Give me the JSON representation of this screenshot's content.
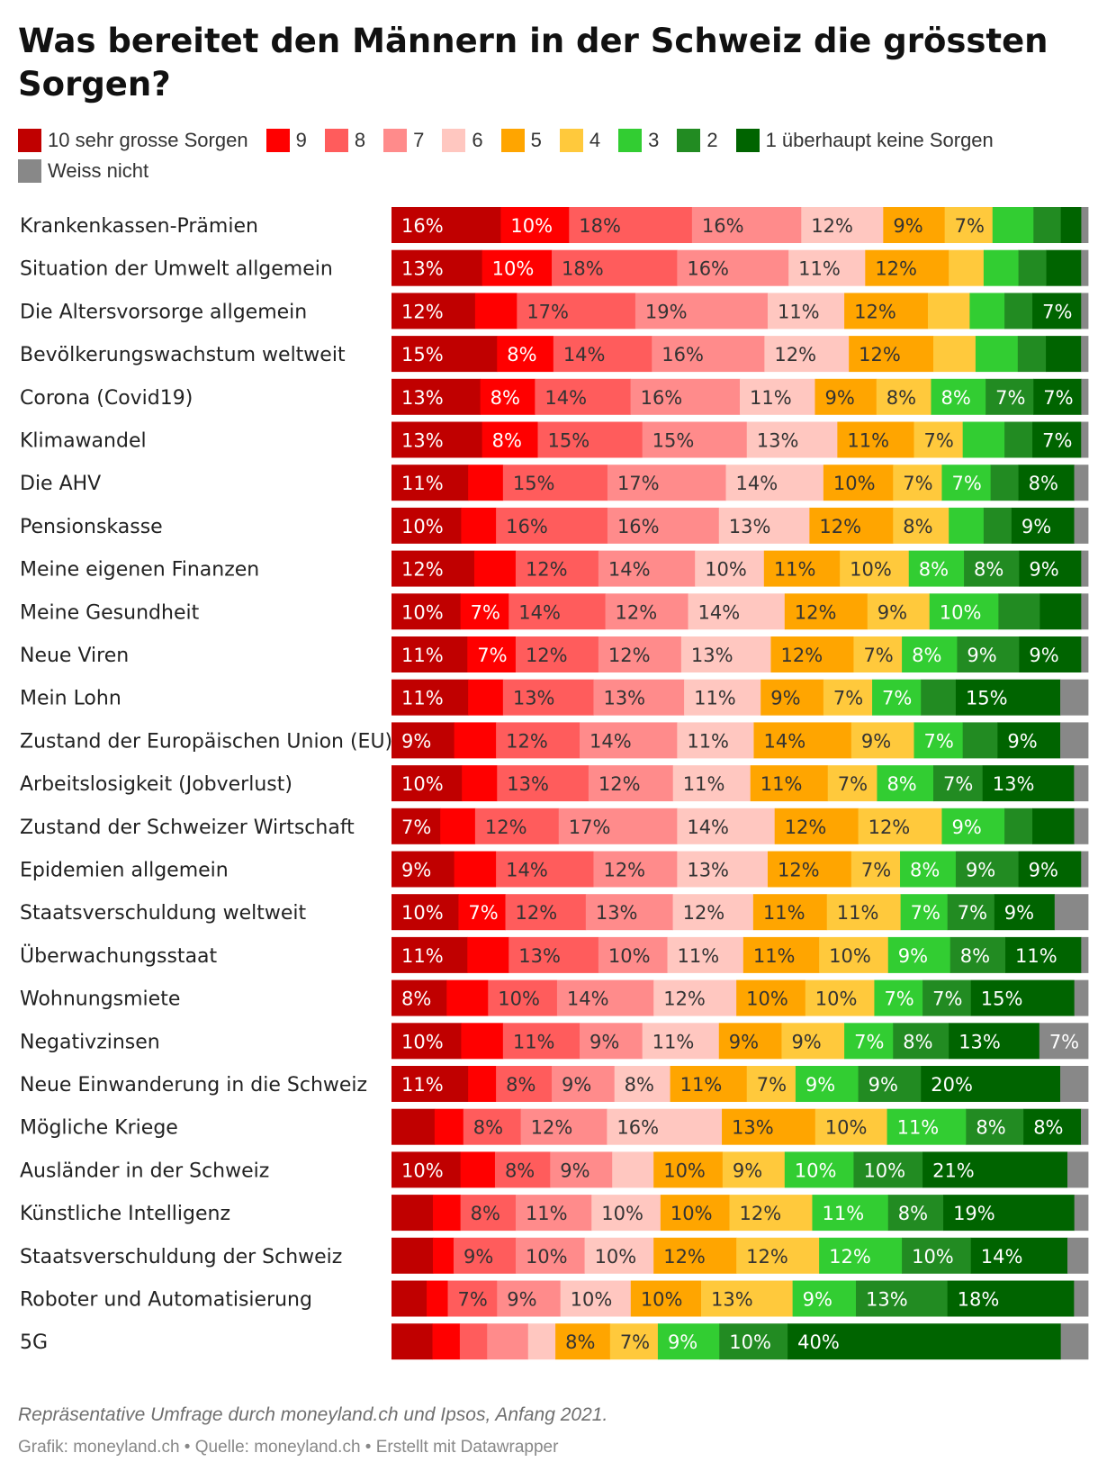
{
  "title": "Was bereitet den Männern in der Schweiz die grössten Sorgen?",
  "footer": {
    "note": "Repräsentative Umfrage durch moneyland.ch und Ipsos, Anfang 2021.",
    "credit": "Grafik: moneyland.ch • Quelle: moneyland.ch • Erstellt mit Datawrapper"
  },
  "chart_data": {
    "type": "bar",
    "orientation": "horizontal-stacked-100",
    "series": [
      {
        "name": "10 sehr grosse Sorgen",
        "color": "#c00000",
        "values": [
          16,
          13,
          12,
          15,
          13,
          13,
          11,
          10,
          12,
          10,
          11,
          11,
          9,
          10,
          7,
          9,
          10,
          11,
          8,
          10,
          11,
          6,
          10,
          6,
          6,
          5,
          6
        ]
      },
      {
        "name": "9",
        "color": "#ff0000",
        "values": [
          10,
          10,
          6,
          8,
          8,
          8,
          5,
          5,
          6,
          7,
          7,
          5,
          6,
          5,
          5,
          6,
          7,
          6,
          6,
          6,
          4,
          4,
          5,
          4,
          3,
          3,
          4
        ]
      },
      {
        "name": "8",
        "color": "#ff5c5c",
        "values": [
          18,
          18,
          17,
          14,
          14,
          15,
          15,
          16,
          12,
          14,
          12,
          13,
          12,
          13,
          12,
          14,
          12,
          13,
          10,
          11,
          8,
          8,
          8,
          8,
          9,
          7,
          4
        ]
      },
      {
        "name": "7",
        "color": "#ff8b8b",
        "values": [
          16,
          16,
          19,
          16,
          16,
          15,
          17,
          16,
          14,
          12,
          12,
          13,
          14,
          12,
          17,
          12,
          13,
          10,
          14,
          9,
          9,
          12,
          9,
          11,
          10,
          9,
          6
        ]
      },
      {
        "name": "6",
        "color": "#ffc7c0",
        "values": [
          12,
          11,
          11,
          12,
          11,
          13,
          14,
          13,
          10,
          14,
          13,
          11,
          11,
          11,
          14,
          13,
          12,
          11,
          12,
          11,
          8,
          16,
          6,
          10,
          10,
          10,
          4
        ]
      },
      {
        "name": "5",
        "color": "#ffa500",
        "values": [
          9,
          12,
          12,
          12,
          9,
          11,
          10,
          12,
          11,
          12,
          12,
          9,
          14,
          11,
          12,
          12,
          11,
          11,
          10,
          9,
          11,
          13,
          10,
          10,
          12,
          10,
          8
        ]
      },
      {
        "name": "4",
        "color": "#ffc93c",
        "values": [
          7,
          5,
          6,
          6,
          8,
          7,
          7,
          8,
          10,
          9,
          7,
          7,
          9,
          7,
          12,
          7,
          11,
          10,
          10,
          9,
          7,
          10,
          9,
          12,
          12,
          13,
          7
        ]
      },
      {
        "name": "3",
        "color": "#32cd32",
        "values": [
          6,
          5,
          5,
          6,
          8,
          6,
          7,
          5,
          8,
          10,
          8,
          7,
          7,
          8,
          9,
          8,
          7,
          9,
          7,
          7,
          9,
          11,
          10,
          11,
          12,
          9,
          9
        ]
      },
      {
        "name": "2",
        "color": "#228b22",
        "values": [
          4,
          4,
          4,
          4,
          7,
          4,
          4,
          4,
          8,
          6,
          9,
          5,
          5,
          7,
          4,
          9,
          7,
          8,
          7,
          8,
          9,
          8,
          10,
          8,
          10,
          13,
          10
        ]
      },
      {
        "name": "1 überhaupt keine Sorgen",
        "color": "#006400",
        "values": [
          3,
          5,
          7,
          5,
          7,
          7,
          8,
          9,
          9,
          6,
          9,
          15,
          9,
          13,
          6,
          9,
          9,
          11,
          15,
          13,
          20,
          8,
          21,
          19,
          14,
          18,
          40
        ]
      },
      {
        "name": "Weiss nicht",
        "color": "#888888",
        "values": [
          1,
          1,
          1,
          1,
          1,
          1,
          2,
          2,
          1,
          1,
          1,
          4,
          4,
          2,
          2,
          1,
          5,
          1,
          2,
          7,
          4,
          1,
          3,
          2,
          3,
          2,
          4
        ]
      }
    ],
    "categories": [
      "Krankenkassen-Prämien",
      "Situation der Umwelt allgemein",
      "Die Altersvorsorge allgemein",
      "Bevölkerungswachstum weltweit",
      "Corona (Covid19)",
      "Klimawandel",
      "Die AHV",
      "Pensionskasse",
      "Meine eigenen Finanzen",
      "Meine Gesundheit",
      "Neue Viren",
      "Mein Lohn",
      "Zustand der Europäischen Union (EU)",
      "Arbeitslosigkeit (Jobverlust)",
      "Zustand der Schweizer Wirtschaft",
      "Epidemien allgemein",
      "Staatsverschuldung weltweit",
      "Überwachungsstaat",
      "Wohnungsmiete",
      "Negativzinsen",
      "Neue Einwanderung in die Schweiz",
      "Mögliche Kriege",
      "Ausländer in der Schweiz",
      "Künstliche Intelligenz",
      "Staatsverschuldung der Schweiz",
      "Roboter und Automatisierung",
      "5G"
    ],
    "value_suffix": "%",
    "label_min_percent": 7
  }
}
